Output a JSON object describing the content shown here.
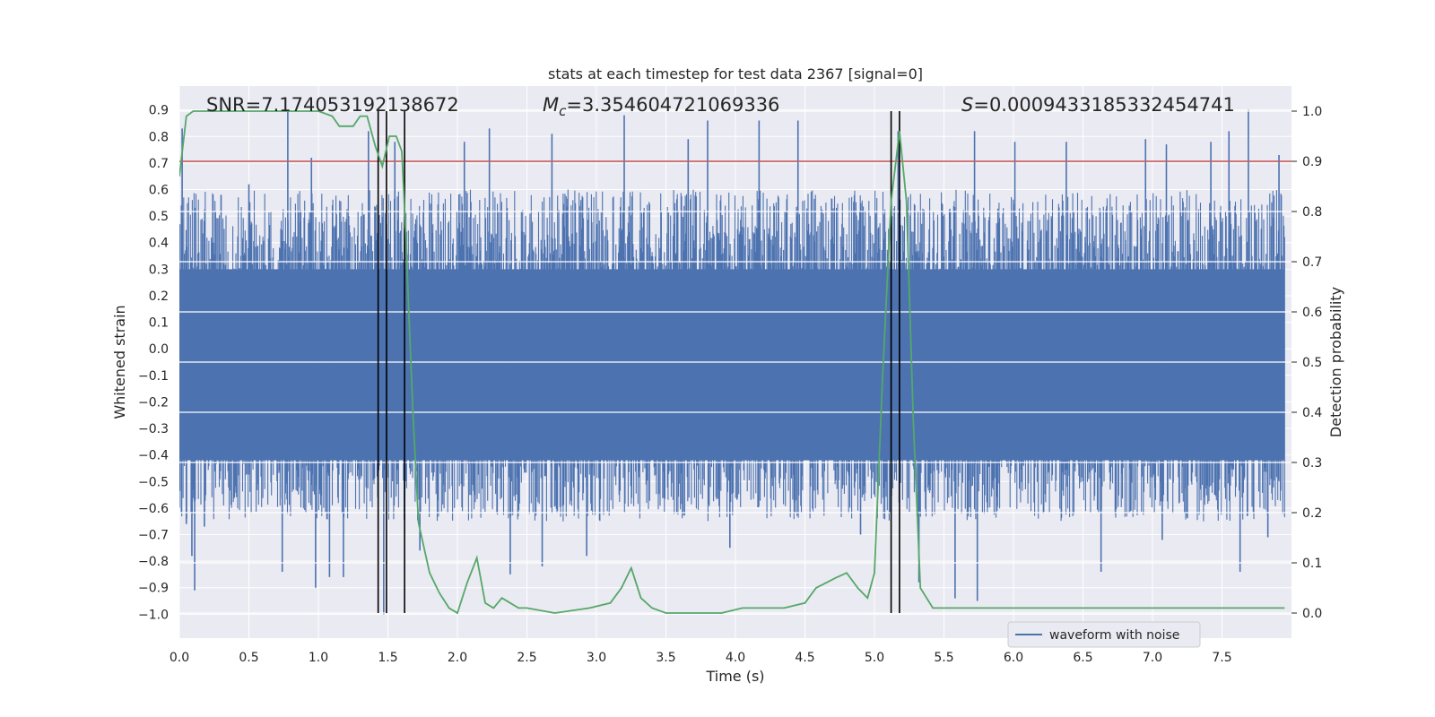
{
  "chart_data": {
    "type": "line",
    "title": "stats at each timestep for test data 2367 [signal=0]",
    "xlabel": "Time (s)",
    "ylabel_left": "Whitened strain",
    "ylabel_right": "Detection probability",
    "xlim": [
      0.0,
      8.0
    ],
    "ylim_left": [
      -1.09,
      0.99
    ],
    "ylim_right": [
      -0.05,
      1.05
    ],
    "x_ticks": [
      "0.0",
      "0.5",
      "1.0",
      "1.5",
      "2.0",
      "2.5",
      "3.0",
      "3.5",
      "4.0",
      "4.5",
      "5.0",
      "5.5",
      "6.0",
      "6.5",
      "7.0",
      "7.5"
    ],
    "x_tick_values": [
      0,
      0.5,
      1,
      1.5,
      2,
      2.5,
      3,
      3.5,
      4,
      4.5,
      5,
      5.5,
      6,
      6.5,
      7,
      7.5
    ],
    "y_ticks_left": [
      "0.9",
      "0.8",
      "0.7",
      "0.6",
      "0.5",
      "0.4",
      "0.3",
      "0.2",
      "0.1",
      "0.0",
      "−0.1",
      "−0.2",
      "−0.3",
      "−0.4",
      "−0.5",
      "−0.6",
      "−0.7",
      "−0.8",
      "−0.9",
      "−1.0"
    ],
    "y_tick_values_left": [
      0.9,
      0.8,
      0.7,
      0.6,
      0.5,
      0.4,
      0.3,
      0.2,
      0.1,
      0.0,
      -0.1,
      -0.2,
      -0.3,
      -0.4,
      -0.5,
      -0.6,
      -0.7,
      -0.8,
      -0.9,
      -1.0
    ],
    "y_ticks_right": [
      "1.0",
      "0.9",
      "0.8",
      "0.7",
      "0.6",
      "0.5",
      "0.4",
      "0.3",
      "0.2",
      "0.1",
      "0.0"
    ],
    "y_tick_values_right": [
      1.0,
      0.9,
      0.8,
      0.7,
      0.6,
      0.5,
      0.4,
      0.3,
      0.2,
      0.1,
      0.0
    ],
    "annotations": {
      "snr": "SNR=7.174053192138672",
      "mc_symbol": "M",
      "mc_sub": "c",
      "mc_value": "=3.354604721069336",
      "s_symbol": "S",
      "s_value": "=0.0009433185332454741"
    },
    "legend": {
      "label": "waveform with noise",
      "placement": "lower-right"
    },
    "threshold": {
      "value_right_axis": 0.9,
      "color": "#c44e52"
    },
    "vertical_lines": [
      1.43,
      1.49,
      1.62,
      5.12,
      5.18
    ],
    "waveform": {
      "name": "waveform with noise",
      "color": "#4c72b0",
      "core_band": [
        -0.55,
        0.5
      ],
      "spikes": [
        {
          "t": 0.02,
          "v": 0.83
        },
        {
          "t": 0.05,
          "v": -0.66
        },
        {
          "t": 0.09,
          "v": -0.78
        },
        {
          "t": 0.11,
          "v": -0.91
        },
        {
          "t": 0.18,
          "v": -0.67
        },
        {
          "t": 0.3,
          "v": 0.58
        },
        {
          "t": 0.5,
          "v": 0.62
        },
        {
          "t": 0.74,
          "v": -0.84
        },
        {
          "t": 0.78,
          "v": 0.9
        },
        {
          "t": 0.95,
          "v": 0.72
        },
        {
          "t": 0.98,
          "v": -0.9
        },
        {
          "t": 1.08,
          "v": -0.86
        },
        {
          "t": 1.18,
          "v": -0.86
        },
        {
          "t": 1.36,
          "v": 0.82
        },
        {
          "t": 1.47,
          "v": -1.0
        },
        {
          "t": 1.55,
          "v": 0.78
        },
        {
          "t": 1.73,
          "v": -0.76
        },
        {
          "t": 2.05,
          "v": 0.78
        },
        {
          "t": 2.23,
          "v": 0.83
        },
        {
          "t": 2.38,
          "v": -0.85
        },
        {
          "t": 2.61,
          "v": -0.82
        },
        {
          "t": 2.68,
          "v": 0.81
        },
        {
          "t": 2.93,
          "v": -0.78
        },
        {
          "t": 3.2,
          "v": 0.88
        },
        {
          "t": 3.66,
          "v": 0.79
        },
        {
          "t": 3.8,
          "v": 0.86
        },
        {
          "t": 3.96,
          "v": -0.75
        },
        {
          "t": 4.17,
          "v": 0.86
        },
        {
          "t": 4.45,
          "v": 0.86
        },
        {
          "t": 4.9,
          "v": -0.7
        },
        {
          "t": 5.17,
          "v": 0.82
        },
        {
          "t": 5.32,
          "v": -0.88
        },
        {
          "t": 5.58,
          "v": -0.94
        },
        {
          "t": 5.72,
          "v": 0.82
        },
        {
          "t": 5.74,
          "v": -0.95
        },
        {
          "t": 6.01,
          "v": 0.78
        },
        {
          "t": 6.38,
          "v": 0.78
        },
        {
          "t": 6.63,
          "v": -0.84
        },
        {
          "t": 6.95,
          "v": 0.79
        },
        {
          "t": 7.07,
          "v": -0.72
        },
        {
          "t": 7.1,
          "v": 0.77
        },
        {
          "t": 7.42,
          "v": 0.78
        },
        {
          "t": 7.55,
          "v": 0.82
        },
        {
          "t": 7.63,
          "v": -0.84
        },
        {
          "t": 7.69,
          "v": 0.9
        },
        {
          "t": 7.83,
          "v": -0.71
        },
        {
          "t": 7.91,
          "v": 0.73
        }
      ]
    },
    "detection_probability": {
      "color": "#55a868",
      "t": [
        0.0,
        0.05,
        0.1,
        0.2,
        0.4,
        0.6,
        0.8,
        1.0,
        1.1,
        1.15,
        1.25,
        1.3,
        1.35,
        1.41,
        1.46,
        1.51,
        1.56,
        1.6,
        1.63,
        1.65,
        1.68,
        1.72,
        1.8,
        1.87,
        1.94,
        2.0,
        2.07,
        2.14,
        2.2,
        2.26,
        2.32,
        2.38,
        2.44,
        2.5,
        2.7,
        2.95,
        3.1,
        3.18,
        3.25,
        3.32,
        3.4,
        3.5,
        3.7,
        3.9,
        4.05,
        4.2,
        4.35,
        4.5,
        4.58,
        4.65,
        4.72,
        4.8,
        4.88,
        4.95,
        5.0,
        5.06,
        5.12,
        5.18,
        5.23,
        5.28,
        5.33,
        5.42,
        5.6,
        5.8,
        6.0,
        6.2,
        6.35,
        6.5,
        6.7,
        7.0,
        7.5,
        7.95
      ],
      "values": [
        0.87,
        0.99,
        1.0,
        1.0,
        1.0,
        1.0,
        1.0,
        1.0,
        0.99,
        0.97,
        0.97,
        0.99,
        0.99,
        0.93,
        0.89,
        0.95,
        0.95,
        0.92,
        0.75,
        0.6,
        0.4,
        0.18,
        0.08,
        0.04,
        0.01,
        0.0,
        0.06,
        0.11,
        0.02,
        0.01,
        0.03,
        0.02,
        0.01,
        0.01,
        0.0,
        0.01,
        0.02,
        0.05,
        0.09,
        0.03,
        0.01,
        0.0,
        0.0,
        0.0,
        0.01,
        0.01,
        0.01,
        0.02,
        0.05,
        0.06,
        0.07,
        0.08,
        0.05,
        0.03,
        0.08,
        0.48,
        0.82,
        0.96,
        0.82,
        0.38,
        0.05,
        0.01,
        0.01,
        0.01,
        0.01,
        0.01,
        0.01,
        0.01,
        0.01,
        0.01,
        0.01,
        0.01
      ]
    }
  }
}
